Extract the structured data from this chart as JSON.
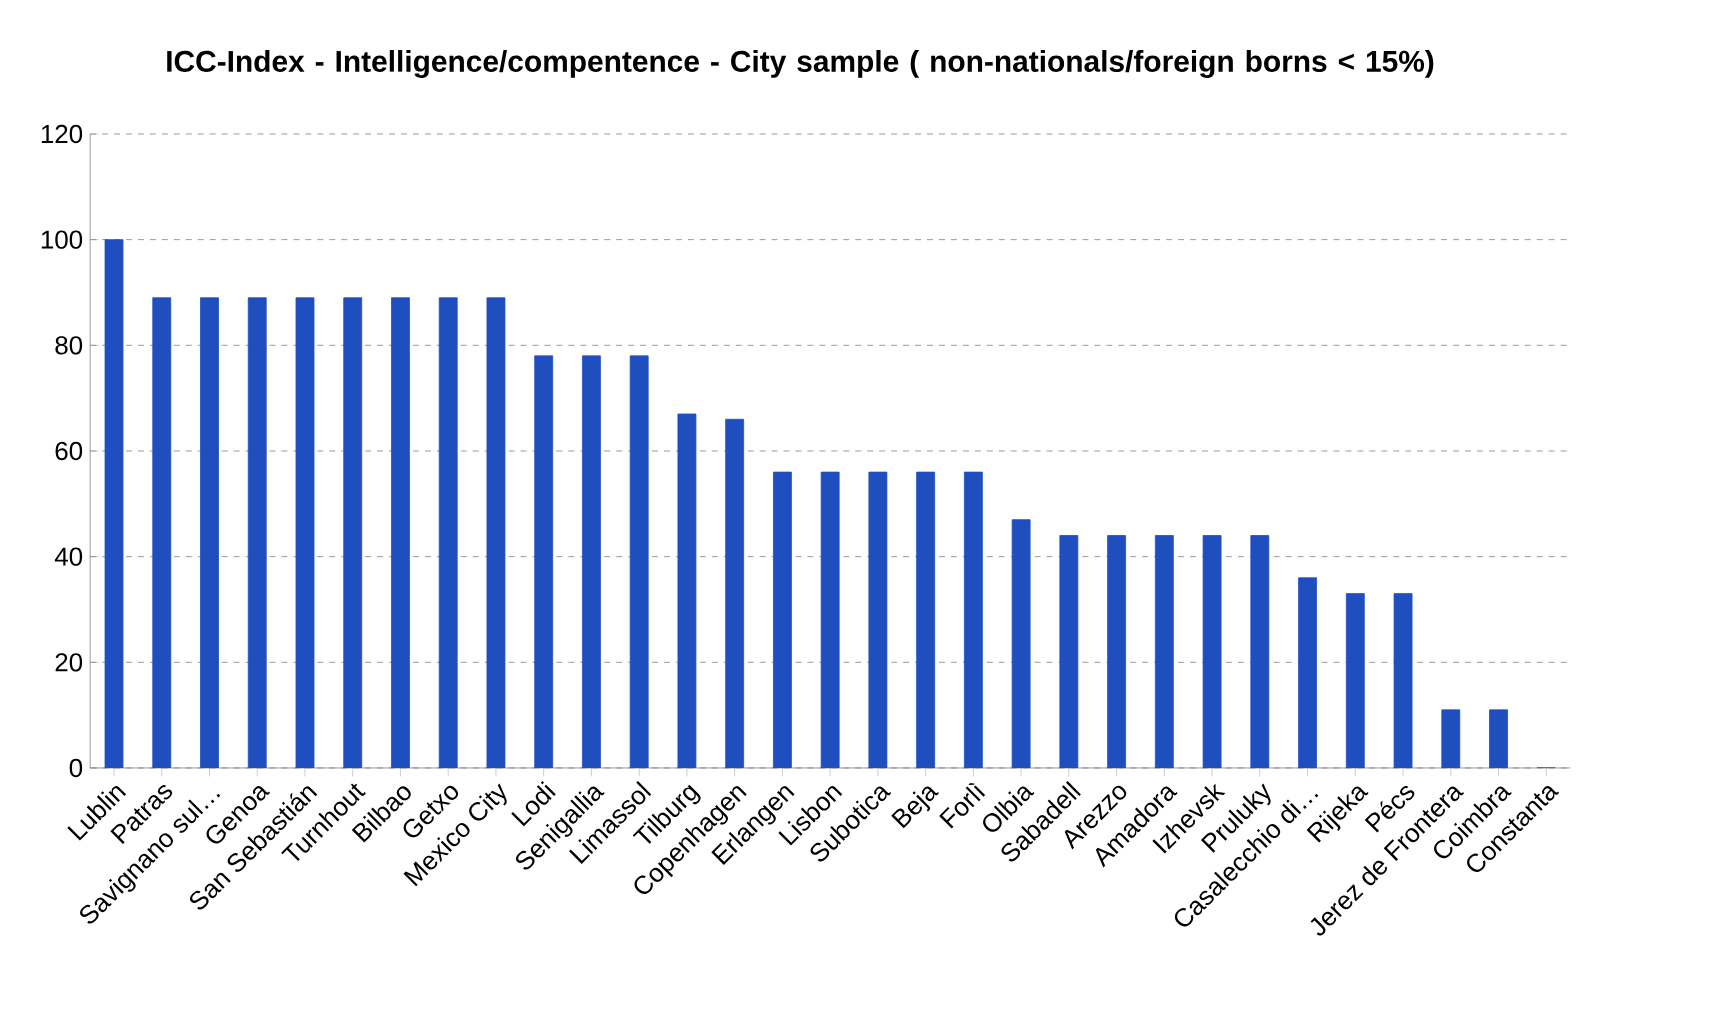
{
  "chart_data": {
    "type": "bar",
    "title": "ICC-Index - Intelligence/compentence -  City sample ( non-nationals/foreign borns < 15%)",
    "categories": [
      "Lublin",
      "Patras",
      "Savignano sul…",
      "Genoa",
      "San Sebastián",
      "Turnhout",
      "Bilbao",
      "Getxo",
      "Mexico City",
      "Lodi",
      "Senigallia",
      "Limassol",
      "Tilburg",
      "Copenhagen",
      "Erlangen",
      "Lisbon",
      "Subotica",
      "Beja",
      "Forlì",
      "Olbia",
      "Sabadell",
      "Arezzo",
      "Amadora",
      "Izhevsk",
      "Pruluky",
      "Casalecchio di…",
      "Rijeka",
      "Pécs",
      "Jerez de Frontera",
      "Coimbra",
      "Constanta"
    ],
    "values": [
      100,
      89,
      89,
      89,
      89,
      89,
      89,
      89,
      89,
      78,
      78,
      78,
      67,
      66,
      56,
      56,
      56,
      56,
      56,
      47,
      44,
      44,
      44,
      44,
      44,
      36,
      33,
      33,
      11,
      11,
      0
    ],
    "color": "#1f4fbf",
    "ylim": [
      0,
      120
    ],
    "yticks": [
      0,
      20,
      40,
      60,
      80,
      100,
      120
    ],
    "grid": "y"
  }
}
